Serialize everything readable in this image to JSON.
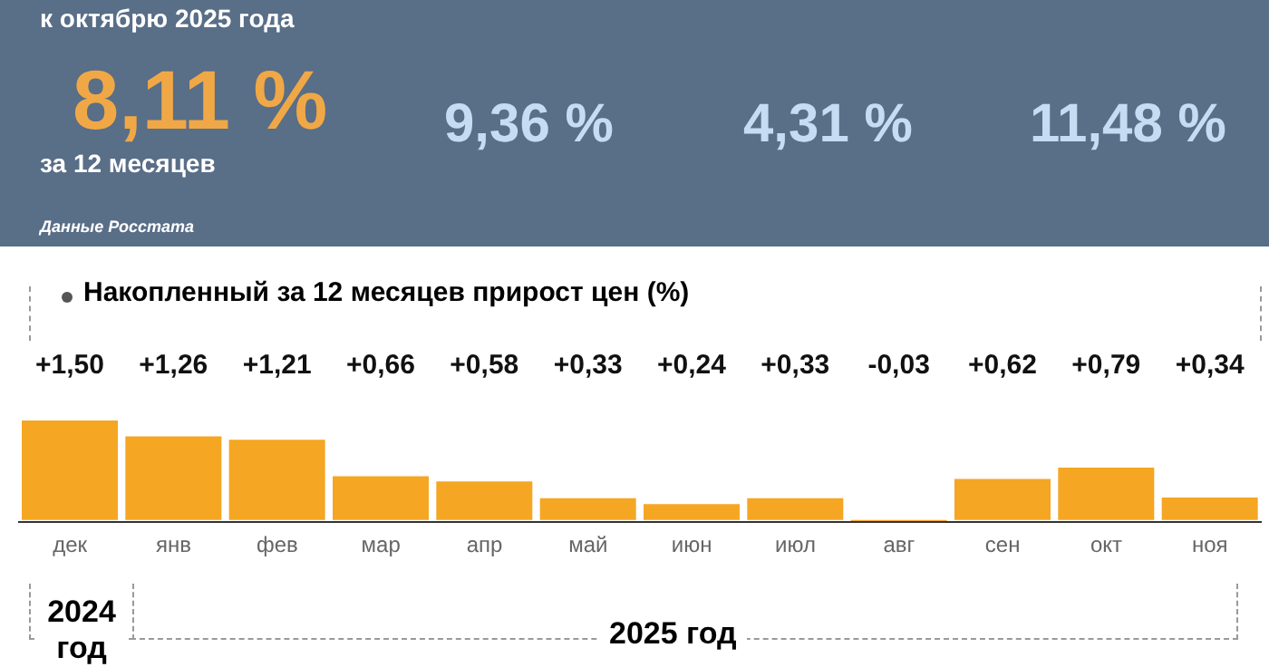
{
  "chart_data": [
    {
      "type": "other",
      "title": "к октябрю 2025 года",
      "annotations": [
        "8,11 %",
        "за 12 месяцев",
        "9,36 %",
        "4,31 %",
        "11,48 %",
        "Данные Росстата"
      ]
    },
    {
      "type": "bar",
      "title": "Накопленный за 12 месяцев прирост цен (%)",
      "categories": [
        "дек",
        "янв",
        "фев",
        "мар",
        "апр",
        "май",
        "июн",
        "июл",
        "авг",
        "сен",
        "окт",
        "ноя"
      ],
      "values": [
        1.5,
        1.26,
        1.21,
        0.66,
        0.58,
        0.33,
        0.24,
        0.33,
        -0.03,
        0.62,
        0.79,
        0.34
      ],
      "color": "#f5a623",
      "value_labels": [
        "+1,50",
        "+1,26",
        "+1,21",
        "+0,66",
        "+0,58",
        "+0,33",
        "+0,24",
        "+0,33",
        "-0,03",
        "+0,62",
        "+0,79",
        "+0,34"
      ],
      "annotations": [
        "2024 год",
        "2025 год"
      ]
    }
  ]
}
